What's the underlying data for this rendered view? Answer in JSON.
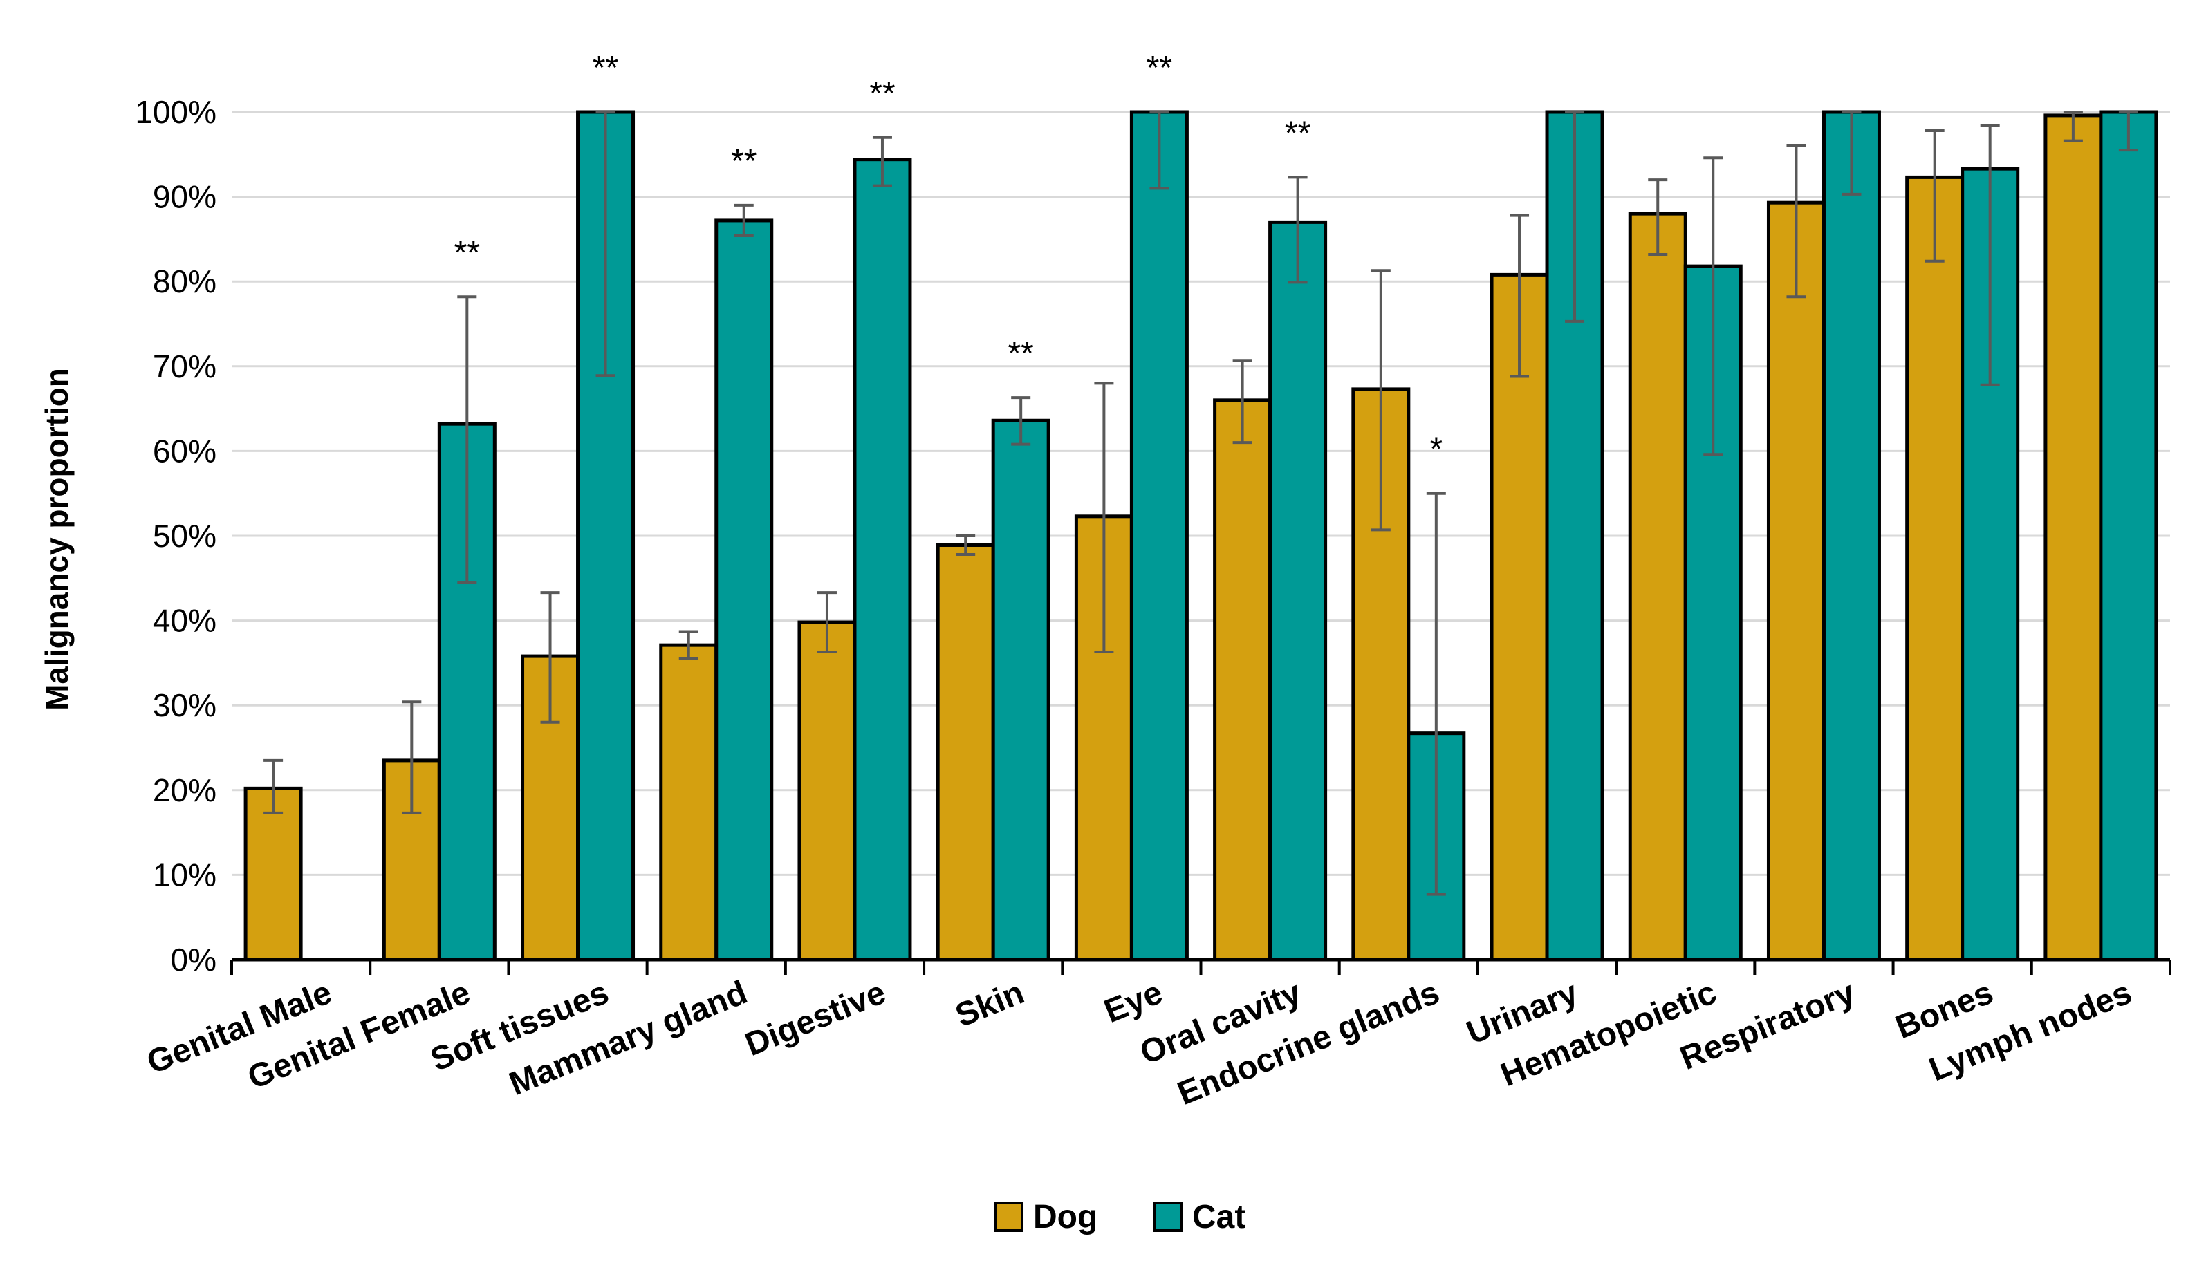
{
  "chart_data": {
    "type": "bar",
    "ylabel": "Malignancy proportion",
    "xlabel": "",
    "ylim": [
      0,
      100
    ],
    "yticks": [
      0,
      10,
      20,
      30,
      40,
      50,
      60,
      70,
      80,
      90,
      100
    ],
    "ytick_labels": [
      "0%",
      "10%",
      "20%",
      "30%",
      "40%",
      "50%",
      "60%",
      "70%",
      "80%",
      "90%",
      "100%"
    ],
    "grid": true,
    "legend_position": "bottom-center",
    "categories": [
      "Genital Male",
      "Genital Female",
      "Soft tissues",
      "Mammary gland",
      "Digestive",
      "Skin",
      "Eye",
      "Oral cavity",
      "Endocrine glands",
      "Urinary",
      "Hematopoietic",
      "Respiratory",
      "Bones",
      "Lymph nodes"
    ],
    "series": [
      {
        "name": "Dog",
        "color": "#D4A010",
        "values": [
          20.2,
          23.5,
          35.8,
          37.1,
          39.8,
          48.9,
          52.3,
          66.0,
          67.3,
          80.8,
          88.0,
          89.3,
          92.3,
          99.6
        ],
        "err_low": [
          17.3,
          17.3,
          28.0,
          35.5,
          36.3,
          47.8,
          36.3,
          61.0,
          50.7,
          68.8,
          83.2,
          78.2,
          82.4,
          96.6
        ],
        "err_high": [
          23.5,
          30.4,
          43.3,
          38.7,
          43.3,
          50.0,
          68.0,
          70.7,
          81.3,
          87.8,
          92.0,
          96.0,
          97.8,
          100
        ]
      },
      {
        "name": "Cat",
        "color": "#009A96",
        "values": [
          null,
          63.2,
          100,
          87.2,
          94.4,
          63.6,
          100,
          87.0,
          26.7,
          100,
          81.8,
          100,
          93.3,
          100
        ],
        "err_low": [
          null,
          44.5,
          68.9,
          85.4,
          91.3,
          60.8,
          91.0,
          79.9,
          7.7,
          75.3,
          59.6,
          90.3,
          67.8,
          95.5
        ],
        "err_high": [
          null,
          78.2,
          100,
          89.0,
          97.0,
          66.3,
          100,
          92.3,
          55.0,
          100,
          94.6,
          100,
          98.4,
          100
        ]
      }
    ],
    "annotations": [
      {
        "category": "Genital Female",
        "text": "**"
      },
      {
        "category": "Soft tissues",
        "text": "**"
      },
      {
        "category": "Mammary gland",
        "text": "**"
      },
      {
        "category": "Digestive",
        "text": "**"
      },
      {
        "category": "Skin",
        "text": "**"
      },
      {
        "category": "Eye",
        "text": "**"
      },
      {
        "category": "Oral cavity",
        "text": "**"
      },
      {
        "category": "Endocrine glands",
        "text": "*"
      }
    ]
  }
}
